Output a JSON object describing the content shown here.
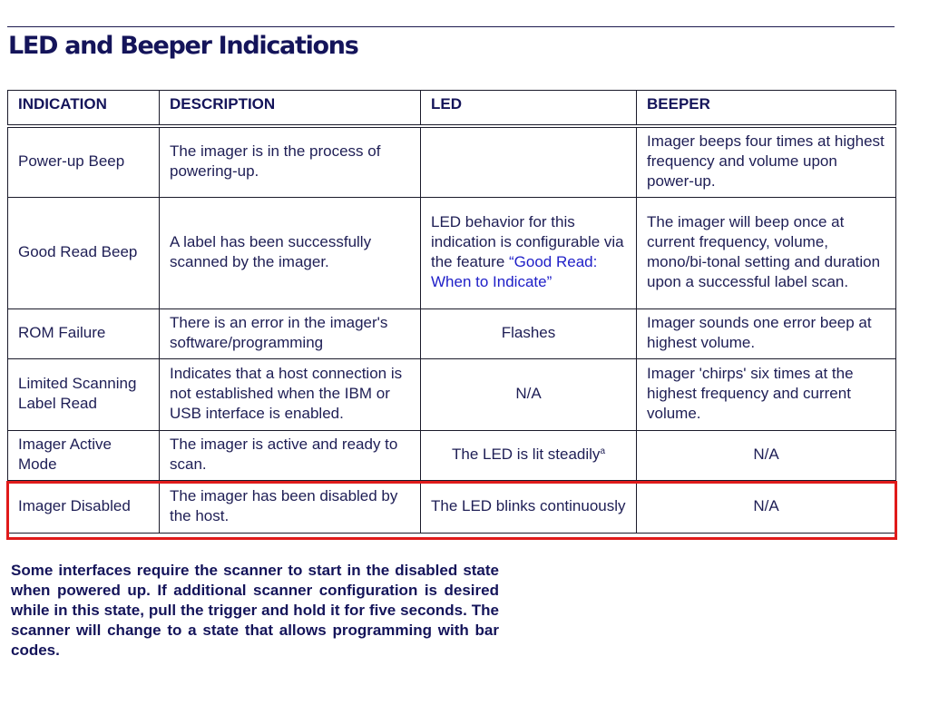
{
  "page": {
    "title": "LED and Beeper Indications",
    "note": "Some interfaces require the scanner to start in the disabled state when powered up. If additional scanner configuration is desired while in this state, pull the trigger and hold it for five seconds. The scanner will change to a state that allows programming with bar codes."
  },
  "table": {
    "headers": {
      "indication": "INDICATION",
      "description": "DESCRIPTION",
      "led": "LED",
      "beeper": "BEEPER"
    },
    "rows": [
      {
        "indication": "Power-up Beep",
        "description": "The imager is in the process of powering-up.",
        "led": "",
        "beeper": "Imager beeps four times at highest frequency and volume upon power-up."
      },
      {
        "indication": "Good Read Beep",
        "description": "A label has been successfully scanned by the imager.",
        "led_prefix": "LED behavior for this indication is configurable via the feature ",
        "led_link": "“Good Read: When to Indicate”",
        "beeper": "The imager will beep once at current frequency, volume, mono/bi-tonal setting and duration upon a successful label scan."
      },
      {
        "indication": "ROM Failure",
        "description": "There is an error in the imager's software/programming",
        "led": "Flashes",
        "beeper": "Imager sounds one error beep at highest volume."
      },
      {
        "indication": "Limited Scanning Label Read",
        "description": "Indicates that a host connection is not established when the IBM or USB interface is enabled.",
        "led": "N/A",
        "beeper": "Imager 'chirps' six times at the highest frequency and current volume."
      },
      {
        "indication": "Imager Active Mode",
        "description": "The imager is active and ready to scan.",
        "led": "The LED is lit steadily",
        "led_footnote": "a",
        "beeper": "N/A"
      },
      {
        "indication": "Imager Disabled",
        "description": "The imager has been disabled by the host.",
        "led": "The LED blinks continuously",
        "beeper": "N/A"
      }
    ]
  },
  "colors": {
    "heading": "#14145a",
    "link": "#2020c8",
    "highlight_border": "#e01a1a"
  }
}
